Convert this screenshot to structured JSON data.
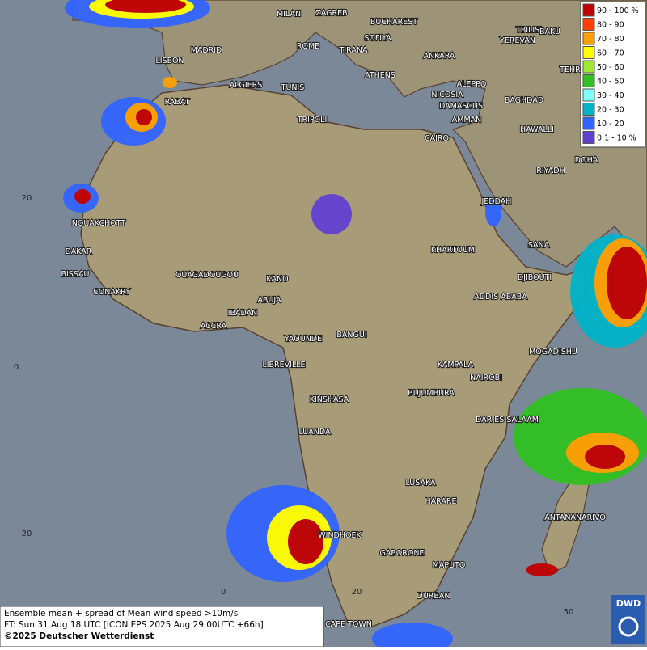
{
  "legend": {
    "entries": [
      {
        "label": "90 - 100 %",
        "color": "#c00000"
      },
      {
        "label": "80 - 90",
        "color": "#ff4000"
      },
      {
        "label": "70 - 80",
        "color": "#ffa000"
      },
      {
        "label": "60 - 70",
        "color": "#ffff00"
      },
      {
        "label": "50 - 60",
        "color": "#a0e632"
      },
      {
        "label": "40 - 50",
        "color": "#30c020"
      },
      {
        "label": "30 - 40",
        "color": "#80ffff"
      },
      {
        "label": "20 - 30",
        "color": "#00b4c8"
      },
      {
        "label": "10 - 20",
        "color": "#3264ff"
      },
      {
        "label": "0.1 - 10 %",
        "color": "#6040d0"
      }
    ]
  },
  "cities": [
    "MILAN",
    "ZAGREB",
    "BUCHAREST",
    "SOFIYA",
    "ROME",
    "TIRANA",
    "ANKARA",
    "TBILISI",
    "YEREVAN",
    "BAKU",
    "TEHRA",
    "LISBON",
    "MADRID",
    "ALGIERS",
    "TUNIS",
    "ATHENS",
    "ALEPPO",
    "NICOSIA",
    "BAGHDAD",
    "DAMASCUS",
    "AMMAN",
    "RABAT",
    "TRIPOLI",
    "CAIRO",
    "HAWALLI",
    "DOHA",
    "RIYADH",
    "JEDDAH",
    "SANA",
    "NOUAKCHOTT",
    "KHARTOUM",
    "DAKAR",
    "BISSAU",
    "DJIBOUTI",
    "OUAGADOUGOU",
    "KANO",
    "CONAKRY",
    "ADDIS ABABA",
    "ABUJA",
    "IBADAN",
    "ACCRA",
    "YAOUNDE",
    "BANGUI",
    "MOGADISHU",
    "LIBREVILLE",
    "KAMPALA",
    "NAIROBI",
    "KINSHASA",
    "BUJUMBURA",
    "DAR ES SALAAM",
    "LUANDA",
    "LUSAKA",
    "HARARE",
    "ANTANANARIVO",
    "WINDHOEK",
    "GABORONE",
    "MAPUTO",
    "DURBAN",
    "CAPE TOWN"
  ],
  "graticule_labels": [
    "20",
    "0",
    "20",
    "0",
    "20",
    "50"
  ],
  "info": {
    "lines": [
      "Ensemble mean + spread of Mean wind speed >10m/s",
      "FT: Sun 31 Aug 18 UTC [ICON EPS 2025 Aug 29 00UTC +66h]",
      "©2025 Deutscher Wetterdienst"
    ]
  },
  "logo": "DWD"
}
